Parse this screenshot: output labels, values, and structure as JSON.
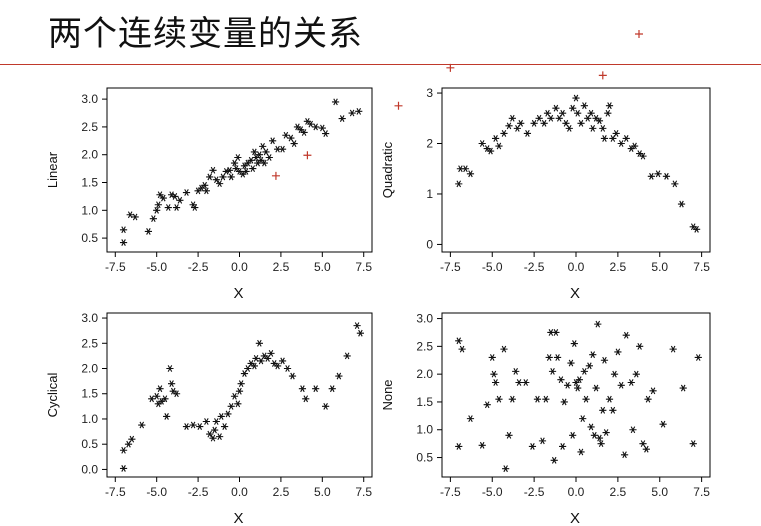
{
  "page": {
    "title": "两个连续变量的关系"
  },
  "colors": {
    "marker": "#111111",
    "outlier": "#c0392b",
    "rule": "#c0392b"
  },
  "chart_data": [
    {
      "type": "scatter",
      "ylabel": "Linear",
      "xlabel": "X",
      "xlim": [
        -8,
        8
      ],
      "ylim": [
        0.25,
        3.2
      ],
      "xticks": [
        -7.5,
        -5.0,
        -2.5,
        0.0,
        2.5,
        5.0,
        7.5
      ],
      "xtick_labels": [
        "-7.5",
        "-5.0",
        "-2.5",
        "0.0",
        "2.5",
        "5.0",
        "7.5"
      ],
      "yticks": [
        0.5,
        1.0,
        1.5,
        2.0,
        2.5,
        3.0
      ],
      "ytick_labels": [
        "0.5",
        "1.0",
        "1.5",
        "2.0",
        "2.5",
        "3.0"
      ],
      "points": [
        [
          -7.0,
          0.65
        ],
        [
          -7.0,
          0.42
        ],
        [
          -6.6,
          0.92
        ],
        [
          -6.3,
          0.88
        ],
        [
          -5.5,
          0.62
        ],
        [
          -5.2,
          0.85
        ],
        [
          -5.0,
          1.0
        ],
        [
          -4.9,
          1.1
        ],
        [
          -4.8,
          1.28
        ],
        [
          -4.6,
          1.22
        ],
        [
          -4.3,
          1.05
        ],
        [
          -4.1,
          1.28
        ],
        [
          -3.9,
          1.25
        ],
        [
          -3.8,
          1.05
        ],
        [
          -3.6,
          1.18
        ],
        [
          -3.2,
          1.32
        ],
        [
          -2.8,
          1.1
        ],
        [
          -2.7,
          1.05
        ],
        [
          -2.5,
          1.35
        ],
        [
          -2.3,
          1.4
        ],
        [
          -2.1,
          1.45
        ],
        [
          -2.0,
          1.35
        ],
        [
          -1.8,
          1.6
        ],
        [
          -1.6,
          1.72
        ],
        [
          -1.4,
          1.55
        ],
        [
          -1.2,
          1.48
        ],
        [
          -1.0,
          1.6
        ],
        [
          -0.8,
          1.7
        ],
        [
          -0.6,
          1.72
        ],
        [
          -0.5,
          1.6
        ],
        [
          -0.3,
          1.85
        ],
        [
          -0.2,
          1.75
        ],
        [
          -0.1,
          1.95
        ],
        [
          0.0,
          1.7
        ],
        [
          0.2,
          1.65
        ],
        [
          0.3,
          1.8
        ],
        [
          0.4,
          1.7
        ],
        [
          0.5,
          1.85
        ],
        [
          0.7,
          1.9
        ],
        [
          0.8,
          1.75
        ],
        [
          0.9,
          2.05
        ],
        [
          1.0,
          1.95
        ],
        [
          1.1,
          1.85
        ],
        [
          1.2,
          2.0
        ],
        [
          1.3,
          1.9
        ],
        [
          1.4,
          2.15
        ],
        [
          1.5,
          1.85
        ],
        [
          1.6,
          2.05
        ],
        [
          1.8,
          1.95
        ],
        [
          2.0,
          2.25
        ],
        [
          2.3,
          2.1
        ],
        [
          2.6,
          2.1
        ],
        [
          2.8,
          2.35
        ],
        [
          3.1,
          2.3
        ],
        [
          3.3,
          2.2
        ],
        [
          3.5,
          2.5
        ],
        [
          3.7,
          2.45
        ],
        [
          3.9,
          2.4
        ],
        [
          4.1,
          2.6
        ],
        [
          4.3,
          2.55
        ],
        [
          4.6,
          2.5
        ],
        [
          5.0,
          2.48
        ],
        [
          5.2,
          2.38
        ],
        [
          5.8,
          2.95
        ],
        [
          6.2,
          2.65
        ],
        [
          6.8,
          2.75
        ],
        [
          7.2,
          2.78
        ]
      ],
      "outliers": [
        [
          2.2,
          1.62
        ],
        [
          4.1,
          1.99
        ],
        [
          9.6,
          2.88
        ]
      ]
    },
    {
      "type": "scatter",
      "ylabel": "Quadratic",
      "xlabel": "X",
      "xlim": [
        -8,
        8
      ],
      "ylim": [
        -0.15,
        3.1
      ],
      "xticks": [
        -7.5,
        -5.0,
        -2.5,
        0.0,
        2.5,
        5.0,
        7.5
      ],
      "xtick_labels": [
        "-7.5",
        "-5.0",
        "-2.5",
        "0.0",
        "2.5",
        "5.0",
        "7.5"
      ],
      "yticks": [
        0,
        1,
        2,
        3
      ],
      "ytick_labels": [
        "0",
        "1",
        "2",
        "3"
      ],
      "points": [
        [
          -7.0,
          1.2
        ],
        [
          -6.9,
          1.5
        ],
        [
          -6.6,
          1.5
        ],
        [
          -6.3,
          1.4
        ],
        [
          -5.6,
          2.0
        ],
        [
          -5.3,
          1.9
        ],
        [
          -5.1,
          1.85
        ],
        [
          -4.8,
          2.1
        ],
        [
          -4.6,
          1.95
        ],
        [
          -4.3,
          2.2
        ],
        [
          -4.0,
          2.35
        ],
        [
          -3.8,
          2.5
        ],
        [
          -3.5,
          2.3
        ],
        [
          -3.3,
          2.4
        ],
        [
          -2.9,
          2.2
        ],
        [
          -2.5,
          2.4
        ],
        [
          -2.2,
          2.5
        ],
        [
          -1.9,
          2.4
        ],
        [
          -1.7,
          2.6
        ],
        [
          -1.5,
          2.5
        ],
        [
          -1.2,
          2.7
        ],
        [
          -1.0,
          2.5
        ],
        [
          -0.8,
          2.6
        ],
        [
          -0.6,
          2.4
        ],
        [
          -0.4,
          2.3
        ],
        [
          -0.2,
          2.7
        ],
        [
          0.0,
          2.9
        ],
        [
          0.1,
          2.6
        ],
        [
          0.3,
          2.4
        ],
        [
          0.5,
          2.75
        ],
        [
          0.7,
          2.5
        ],
        [
          0.9,
          2.6
        ],
        [
          1.0,
          2.3
        ],
        [
          1.2,
          2.5
        ],
        [
          1.4,
          2.45
        ],
        [
          1.6,
          2.3
        ],
        [
          1.7,
          2.1
        ],
        [
          1.9,
          2.6
        ],
        [
          2.0,
          2.75
        ],
        [
          2.2,
          2.1
        ],
        [
          2.4,
          2.2
        ],
        [
          2.7,
          2.0
        ],
        [
          3.0,
          2.1
        ],
        [
          3.3,
          1.9
        ],
        [
          3.5,
          1.95
        ],
        [
          3.8,
          1.8
        ],
        [
          4.0,
          1.75
        ],
        [
          4.5,
          1.35
        ],
        [
          4.9,
          1.4
        ],
        [
          5.4,
          1.35
        ],
        [
          5.9,
          1.2
        ],
        [
          6.3,
          0.8
        ],
        [
          7.0,
          0.35
        ],
        [
          7.2,
          0.3
        ]
      ],
      "outliers": [
        [
          -7.5,
          3.5
        ],
        [
          1.6,
          3.35
        ]
      ]
    },
    {
      "type": "scatter",
      "ylabel": "Cyclical",
      "xlabel": "X",
      "xlim": [
        -8,
        8
      ],
      "ylim": [
        -0.15,
        3.1
      ],
      "xticks": [
        -7.5,
        -5.0,
        -2.5,
        0.0,
        2.5,
        5.0,
        7.5
      ],
      "xtick_labels": [
        "-7.5",
        "-5.0",
        "-2.5",
        "0.0",
        "2.5",
        "5.0",
        "7.5"
      ],
      "yticks": [
        0.0,
        0.5,
        1.0,
        1.5,
        2.0,
        2.5,
        3.0
      ],
      "ytick_labels": [
        "0.0",
        "0.5",
        "1.0",
        "1.5",
        "2.0",
        "2.5",
        "3.0"
      ],
      "points": [
        [
          -7.0,
          0.02
        ],
        [
          -7.0,
          0.38
        ],
        [
          -6.7,
          0.5
        ],
        [
          -6.5,
          0.6
        ],
        [
          -5.9,
          0.88
        ],
        [
          -5.3,
          1.4
        ],
        [
          -5.0,
          1.45
        ],
        [
          -4.9,
          1.3
        ],
        [
          -4.8,
          1.6
        ],
        [
          -4.7,
          1.35
        ],
        [
          -4.5,
          1.4
        ],
        [
          -4.4,
          1.05
        ],
        [
          -4.2,
          2.0
        ],
        [
          -4.1,
          1.7
        ],
        [
          -4.0,
          1.55
        ],
        [
          -3.8,
          1.5
        ],
        [
          -3.2,
          0.85
        ],
        [
          -2.8,
          0.88
        ],
        [
          -2.4,
          0.85
        ],
        [
          -2.0,
          0.95
        ],
        [
          -1.8,
          0.7
        ],
        [
          -1.6,
          0.62
        ],
        [
          -1.5,
          0.78
        ],
        [
          -1.4,
          0.95
        ],
        [
          -1.2,
          0.65
        ],
        [
          -1.1,
          1.05
        ],
        [
          -0.9,
          0.85
        ],
        [
          -0.7,
          1.1
        ],
        [
          -0.5,
          1.25
        ],
        [
          -0.3,
          1.45
        ],
        [
          -0.1,
          1.3
        ],
        [
          0.0,
          1.55
        ],
        [
          0.1,
          1.7
        ],
        [
          0.3,
          1.9
        ],
        [
          0.5,
          2.0
        ],
        [
          0.7,
          2.1
        ],
        [
          0.9,
          2.05
        ],
        [
          1.0,
          2.2
        ],
        [
          1.2,
          2.5
        ],
        [
          1.3,
          2.15
        ],
        [
          1.5,
          2.25
        ],
        [
          1.7,
          2.2
        ],
        [
          1.9,
          2.3
        ],
        [
          2.1,
          2.1
        ],
        [
          2.3,
          2.05
        ],
        [
          2.6,
          2.15
        ],
        [
          2.9,
          2.0
        ],
        [
          3.2,
          1.85
        ],
        [
          3.8,
          1.6
        ],
        [
          4.0,
          1.4
        ],
        [
          4.6,
          1.6
        ],
        [
          5.2,
          1.25
        ],
        [
          5.6,
          1.6
        ],
        [
          6.0,
          1.85
        ],
        [
          6.5,
          2.25
        ],
        [
          7.1,
          2.85
        ],
        [
          7.3,
          2.7
        ]
      ]
    },
    {
      "type": "scatter",
      "ylabel": "None",
      "xlabel": "X",
      "xlim": [
        -8,
        8
      ],
      "ylim": [
        0.15,
        3.1
      ],
      "xticks": [
        -7.5,
        -5.0,
        -2.5,
        0.0,
        2.5,
        5.0,
        7.5
      ],
      "xtick_labels": [
        "-7.5",
        "-5.0",
        "-2.5",
        "0.0",
        "2.5",
        "5.0",
        "7.5"
      ],
      "yticks": [
        0.5,
        1.0,
        1.5,
        2.0,
        2.5,
        3.0
      ],
      "ytick_labels": [
        "0.5",
        "1.0",
        "1.5",
        "2.0",
        "2.5",
        "3.0"
      ],
      "points": [
        [
          -7.0,
          0.7
        ],
        [
          -7.0,
          2.6
        ],
        [
          -6.8,
          2.45
        ],
        [
          -6.3,
          1.2
        ],
        [
          -5.6,
          0.72
        ],
        [
          -5.3,
          1.45
        ],
        [
          -5.0,
          2.3
        ],
        [
          -4.9,
          2.0
        ],
        [
          -4.8,
          1.85
        ],
        [
          -4.6,
          1.55
        ],
        [
          -4.3,
          2.45
        ],
        [
          -4.2,
          0.3
        ],
        [
          -4.0,
          0.9
        ],
        [
          -3.8,
          1.55
        ],
        [
          -3.6,
          2.05
        ],
        [
          -3.4,
          1.85
        ],
        [
          -3.0,
          1.85
        ],
        [
          -2.6,
          0.7
        ],
        [
          -2.3,
          1.55
        ],
        [
          -2.0,
          0.8
        ],
        [
          -1.8,
          1.55
        ],
        [
          -1.6,
          2.3
        ],
        [
          -1.5,
          2.75
        ],
        [
          -1.4,
          2.05
        ],
        [
          -1.3,
          0.45
        ],
        [
          -1.2,
          2.75
        ],
        [
          -1.1,
          2.3
        ],
        [
          -0.9,
          1.9
        ],
        [
          -0.8,
          0.7
        ],
        [
          -0.7,
          1.5
        ],
        [
          -0.5,
          1.8
        ],
        [
          -0.3,
          2.2
        ],
        [
          -0.2,
          0.9
        ],
        [
          -0.1,
          2.55
        ],
        [
          0.0,
          1.85
        ],
        [
          0.1,
          1.75
        ],
        [
          0.2,
          1.9
        ],
        [
          0.3,
          0.6
        ],
        [
          0.4,
          1.2
        ],
        [
          0.5,
          2.05
        ],
        [
          0.6,
          1.55
        ],
        [
          0.8,
          2.15
        ],
        [
          0.9,
          1.05
        ],
        [
          1.0,
          2.35
        ],
        [
          1.1,
          0.9
        ],
        [
          1.2,
          1.75
        ],
        [
          1.3,
          2.9
        ],
        [
          1.4,
          0.85
        ],
        [
          1.5,
          0.75
        ],
        [
          1.6,
          1.35
        ],
        [
          1.7,
          2.25
        ],
        [
          1.8,
          0.95
        ],
        [
          2.0,
          1.55
        ],
        [
          2.2,
          1.35
        ],
        [
          2.3,
          2.0
        ],
        [
          2.5,
          2.4
        ],
        [
          2.7,
          1.8
        ],
        [
          2.9,
          0.55
        ],
        [
          3.0,
          2.7
        ],
        [
          3.3,
          1.85
        ],
        [
          3.4,
          1.0
        ],
        [
          3.6,
          2.0
        ],
        [
          3.8,
          2.5
        ],
        [
          4.0,
          0.75
        ],
        [
          4.2,
          0.65
        ],
        [
          4.3,
          1.55
        ],
        [
          4.6,
          1.7
        ],
        [
          5.2,
          1.1
        ],
        [
          5.8,
          2.45
        ],
        [
          6.4,
          1.75
        ],
        [
          7.0,
          0.75
        ],
        [
          7.3,
          2.3
        ]
      ]
    }
  ]
}
